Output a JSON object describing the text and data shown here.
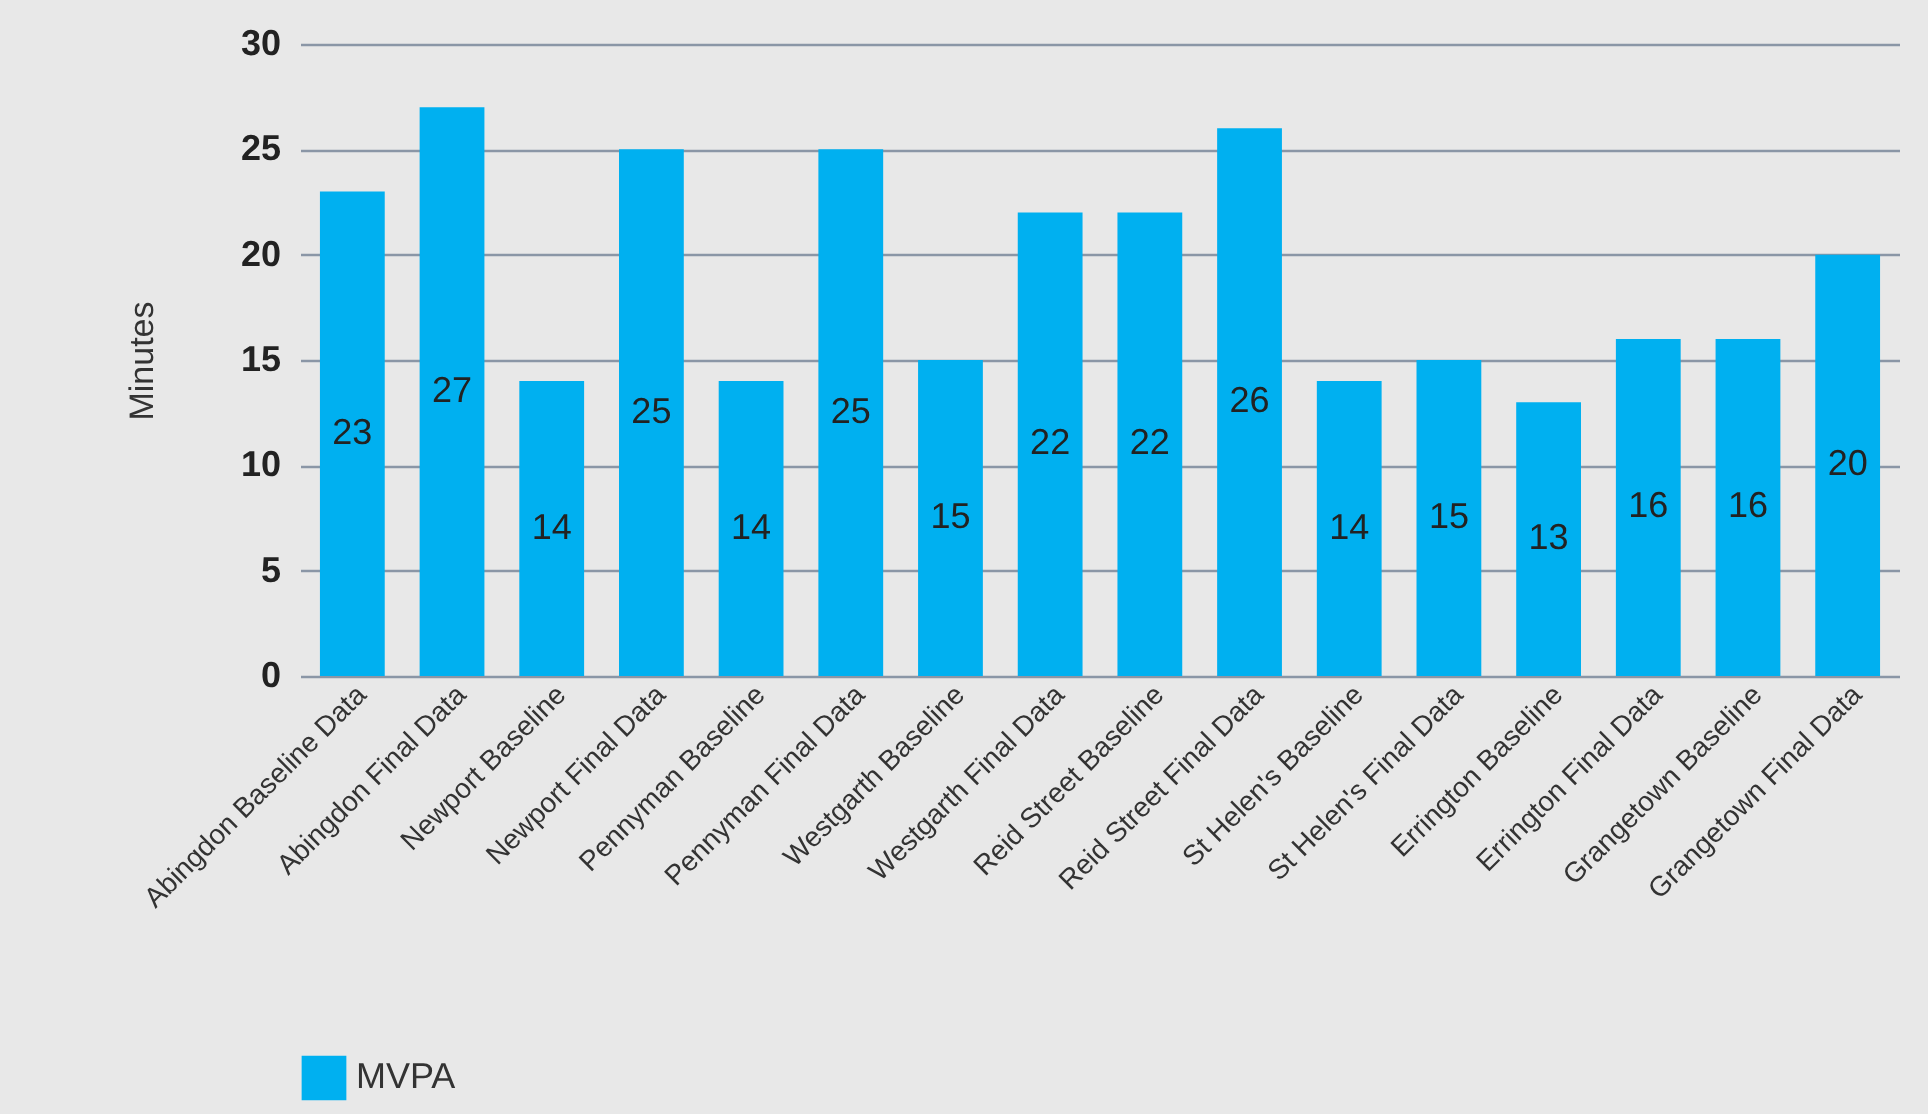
{
  "chart_data": {
    "type": "bar",
    "ylabel": "Minutes",
    "categories": [
      "Abingdon Baseline Data",
      "Abingdon Final Data",
      "Newport Baseline",
      "Newport Final Data",
      "Pennyman Baseline",
      "Pennyman Final Data",
      "Westgarth Baseline",
      "Westgarth Final Data",
      "Reid Street Baseline",
      "Reid Street Final Data",
      "St Helen's Baseline",
      "St Helen's Final Data",
      "Errington Baseline",
      "Errington Final Data",
      "Grangetown Baseline",
      "Grangetown Final Data"
    ],
    "series": [
      {
        "name": "MVPA",
        "color": "#00b0f0",
        "values": [
          23,
          27,
          14,
          25,
          14,
          25,
          15,
          22,
          22,
          26,
          14,
          15,
          13,
          16,
          16,
          20
        ]
      }
    ],
    "ylim": [
      0,
      30
    ],
    "yticks": [
      0,
      5,
      10,
      15,
      20,
      25,
      30
    ],
    "grid": "y",
    "legend": "bottom",
    "data_labels": true
  }
}
